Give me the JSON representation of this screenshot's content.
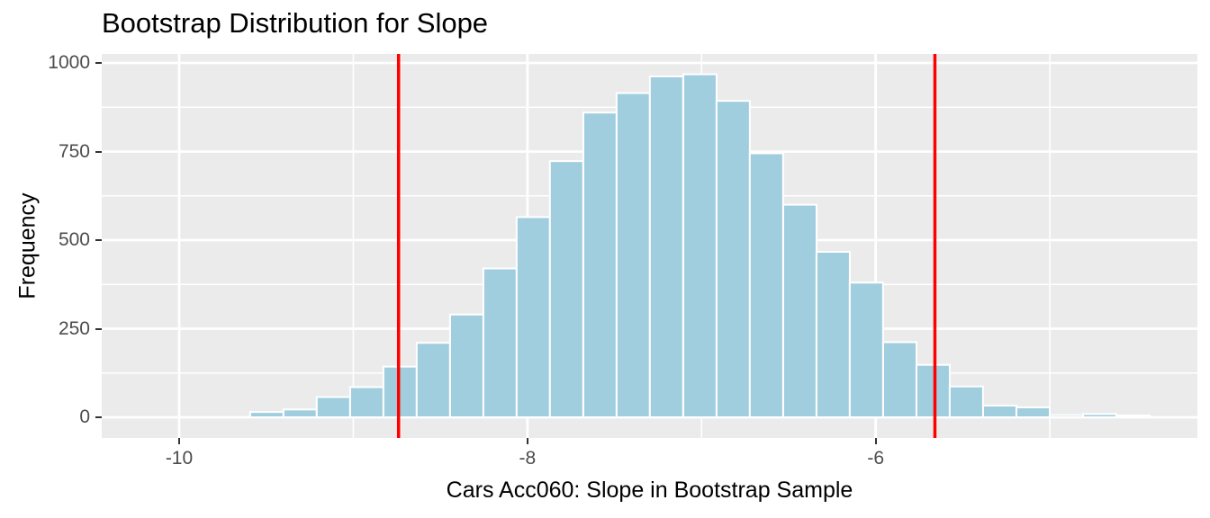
{
  "title": "Bootstrap Distribution for Slope",
  "chart_data": {
    "type": "bar",
    "subtype": "histogram",
    "title": "Bootstrap Distribution for Slope",
    "xlabel": "Cars Acc060: Slope in Bootstrap Sample",
    "ylabel": "Frequency",
    "x_ticks": [
      -10,
      -8,
      -6
    ],
    "x_minor_gridlines": [
      -9,
      -7,
      -5
    ],
    "y_ticks": [
      0,
      250,
      500,
      750,
      1000
    ],
    "y_minor_gridlines": [
      125,
      375,
      625,
      875
    ],
    "xlim": [
      -10.45,
      -4.16
    ],
    "ylim": [
      -55,
      1025
    ],
    "grid": true,
    "legend": false,
    "bin_width": 0.1912,
    "bin_left_edges": [
      -9.592,
      -9.401,
      -9.21,
      -9.018,
      -8.827,
      -8.636,
      -8.444,
      -8.253,
      -8.062,
      -7.871,
      -7.679,
      -7.488,
      -7.297,
      -7.105,
      -6.914,
      -6.723,
      -6.531,
      -6.34,
      -6.149,
      -5.957,
      -5.766,
      -5.575,
      -5.383,
      -5.192,
      -5.001,
      -4.809,
      -4.618
    ],
    "bin_centers": [
      -9.5,
      -9.31,
      -9.11,
      -8.92,
      -8.73,
      -8.54,
      -8.35,
      -8.16,
      -7.97,
      -7.78,
      -7.58,
      -7.39,
      -7.2,
      -7.01,
      -6.82,
      -6.63,
      -6.44,
      -6.24,
      -6.05,
      -5.86,
      -5.67,
      -5.48,
      -5.29,
      -5.1,
      -4.91,
      -4.71,
      -4.52
    ],
    "counts": [
      15,
      22,
      57,
      85,
      143,
      210,
      290,
      420,
      565,
      723,
      860,
      915,
      962,
      968,
      893,
      745,
      600,
      467,
      380,
      212,
      148,
      87,
      33,
      28,
      6,
      9,
      5
    ],
    "vlines": [
      {
        "x": -8.74,
        "role": "lower-ci-bound"
      },
      {
        "x": -5.66,
        "role": "upper-ci-bound"
      }
    ],
    "colors": {
      "bar_fill": "#A0CEDF",
      "bar_border": "#FFFFFF",
      "panel_background": "#EBEBEB",
      "gridline": "#FFFFFF",
      "vline": "#FF0000",
      "tick_label": "#4D4D4D",
      "axis_title": "#000000",
      "tick_mark": "#333333"
    }
  }
}
